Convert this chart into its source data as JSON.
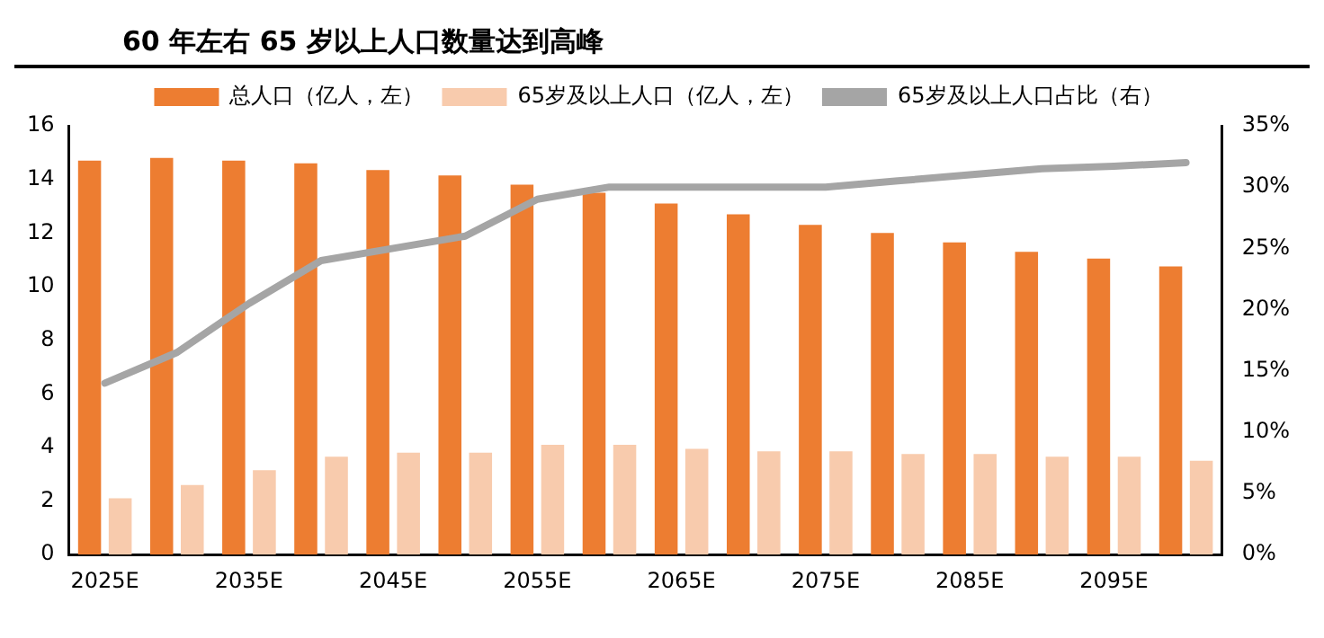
{
  "chart_data": {
    "type": "bar",
    "title": "60 年左右 65 岁以上人口数量达到高峰",
    "categories": [
      "2025E",
      null,
      "2035E",
      null,
      "2045E",
      null,
      "2055E",
      null,
      "2065E",
      null,
      "2075E",
      null,
      "2085E",
      null,
      "2095E",
      null
    ],
    "series": [
      {
        "name": "总人口（亿人，左）",
        "color": "#ed7d31",
        "values": [
          14.7,
          14.8,
          14.7,
          14.6,
          14.35,
          14.15,
          13.8,
          13.5,
          13.1,
          12.7,
          12.3,
          12.0,
          11.65,
          11.3,
          11.05,
          10.75
        ]
      },
      {
        "name": "65岁及以上人口（亿人，左）",
        "color": "#f8cbad",
        "values": [
          2.1,
          2.6,
          3.15,
          3.65,
          3.8,
          3.8,
          4.1,
          4.1,
          3.95,
          3.85,
          3.85,
          3.75,
          3.75,
          3.65,
          3.65,
          3.5
        ]
      },
      {
        "name": "65岁及以上人口占比（右）",
        "color": "#a5a5a5",
        "type": "line",
        "axis": "y2",
        "values": [
          14,
          16.5,
          20.5,
          24,
          25,
          26,
          29,
          30,
          30,
          30,
          30,
          30.5,
          31,
          31.5,
          31.7,
          32
        ]
      }
    ],
    "ylim": [
      0,
      16
    ],
    "yticks": [
      0,
      2,
      4,
      6,
      8,
      10,
      12,
      14,
      16
    ],
    "y2lim": [
      0,
      35
    ],
    "y2ticks": [
      {
        "value": 0,
        "label": "0%"
      },
      {
        "value": 5,
        "label": "5%"
      },
      {
        "value": 10,
        "label": "10%"
      },
      {
        "value": 15,
        "label": "15%"
      },
      {
        "value": 20,
        "label": "20%"
      },
      {
        "value": 25,
        "label": "25%"
      },
      {
        "value": 30,
        "label": "30%"
      },
      {
        "value": 35,
        "label": "35%"
      }
    ],
    "grid": false,
    "legend": "top",
    "marker": "none"
  }
}
